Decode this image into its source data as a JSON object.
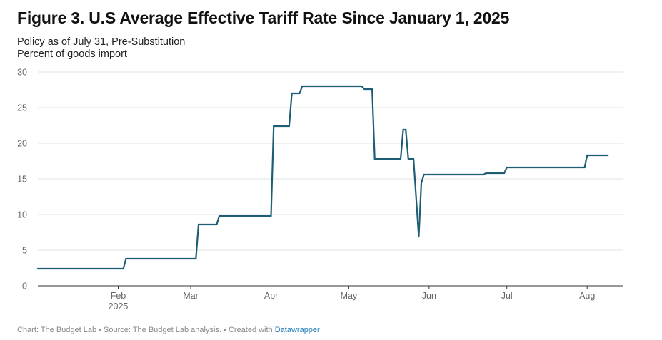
{
  "title": "Figure 3. U.S Average Effective Tariff Rate Since January 1, 2025",
  "subtitle_line1": "Policy as of July 31, Pre-Substitution",
  "subtitle_line2": "Percent of goods import",
  "footer": {
    "text": "Chart: The Budget Lab • Source: The Budget Lab analysis. • Created with ",
    "link": "Datawrapper"
  },
  "colors": {
    "line": "#1d5e74",
    "grid": "#e3e3e3",
    "axis": "#333333"
  },
  "chart_data": {
    "type": "line",
    "title": "Figure 3. U.S Average Effective Tariff Rate Since January 1, 2025",
    "subtitle": "Policy as of July 31, Pre-Substitution",
    "ylabel": "Percent of goods import",
    "xlabel": "",
    "x_axis_type": "date",
    "xlim": [
      "2025-01-01",
      "2025-08-15"
    ],
    "ylim": [
      0,
      30
    ],
    "y_ticks": [
      0,
      5,
      10,
      15,
      20,
      25,
      30
    ],
    "x_ticks": [
      {
        "date": "2025-02-01",
        "label": "Feb",
        "sublabel": "2025"
      },
      {
        "date": "2025-03-01",
        "label": "Mar",
        "sublabel": ""
      },
      {
        "date": "2025-04-01",
        "label": "Apr",
        "sublabel": ""
      },
      {
        "date": "2025-05-01",
        "label": "May",
        "sublabel": ""
      },
      {
        "date": "2025-06-01",
        "label": "Jun",
        "sublabel": ""
      },
      {
        "date": "2025-07-01",
        "label": "Jul",
        "sublabel": ""
      },
      {
        "date": "2025-08-01",
        "label": "Aug",
        "sublabel": ""
      }
    ],
    "grid": true,
    "series": [
      {
        "points": [
          [
            "2025-01-01",
            2.4
          ],
          [
            "2025-02-03",
            2.4
          ],
          [
            "2025-02-04",
            3.8
          ],
          [
            "2025-03-03",
            3.8
          ],
          [
            "2025-03-04",
            8.6
          ],
          [
            "2025-03-11",
            8.6
          ],
          [
            "2025-03-12",
            9.8
          ],
          [
            "2025-04-01",
            9.8
          ],
          [
            "2025-04-02",
            22.4
          ],
          [
            "2025-04-08",
            22.4
          ],
          [
            "2025-04-09",
            27.0
          ],
          [
            "2025-04-12",
            27.0
          ],
          [
            "2025-04-13",
            28.0
          ],
          [
            "2025-05-06",
            28.0
          ],
          [
            "2025-05-07",
            27.6
          ],
          [
            "2025-05-10",
            27.6
          ],
          [
            "2025-05-11",
            17.8
          ],
          [
            "2025-05-21",
            17.8
          ],
          [
            "2025-05-22",
            21.9
          ],
          [
            "2025-05-23",
            21.9
          ],
          [
            "2025-05-24",
            17.8
          ],
          [
            "2025-05-26",
            17.8
          ],
          [
            "2025-05-28",
            6.9
          ],
          [
            "2025-05-29",
            14.4
          ],
          [
            "2025-05-30",
            15.6
          ],
          [
            "2025-06-22",
            15.6
          ],
          [
            "2025-06-23",
            15.8
          ],
          [
            "2025-06-30",
            15.8
          ],
          [
            "2025-07-01",
            16.6
          ],
          [
            "2025-07-31",
            16.6
          ],
          [
            "2025-08-01",
            18.3
          ],
          [
            "2025-08-09",
            18.3
          ]
        ]
      }
    ]
  }
}
